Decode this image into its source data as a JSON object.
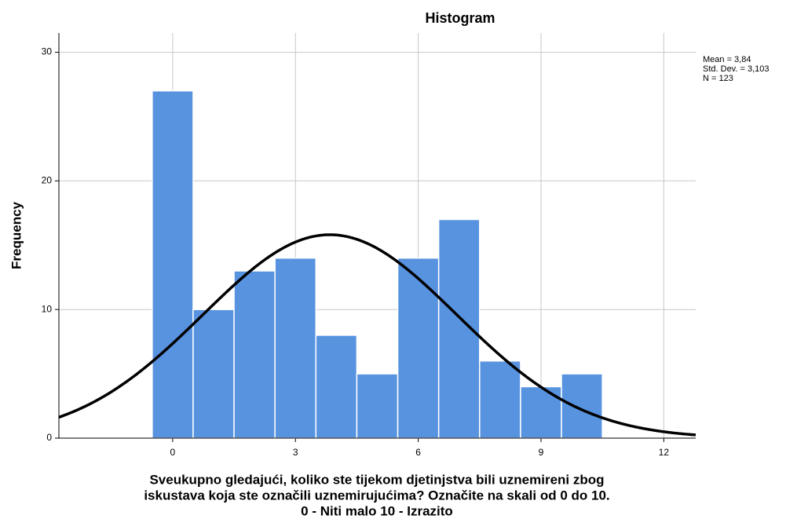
{
  "chart_data": {
    "type": "histogram",
    "title": "Histogram",
    "ylabel": "Frequency",
    "xlabel": [
      "Sveukupno gledajući, koliko ste tijekom djetinjstva bili uznemireni zbog",
      "iskustava koja ste označili uznemirujućima? Označite na skali od 0 do 10.",
      "0 - Niti malo 10 - Izrazito"
    ],
    "bins": [
      -0.5,
      0.5,
      1.5,
      2.5,
      3.5,
      4.5,
      5.5,
      6.5,
      7.5,
      8.5,
      9.5,
      10.5
    ],
    "counts": [
      27,
      10,
      13,
      14,
      8,
      5,
      14,
      17,
      6,
      4,
      5
    ],
    "color": "#5893e0",
    "curve_color": "#000000",
    "xlim": [
      -2.78,
      12.78
    ],
    "xticks": [
      0,
      3,
      6,
      9,
      12
    ],
    "ylim": [
      0,
      31.5
    ],
    "yticks": [
      0,
      10,
      20,
      30
    ],
    "grid": true,
    "stats": [
      {
        "value": 3.84,
        "label": "Mean = 3,84"
      },
      {
        "value": 3.103,
        "label": "Std. Dev. = 3,103"
      },
      {
        "value": 123,
        "label": "N = 123"
      }
    ]
  }
}
